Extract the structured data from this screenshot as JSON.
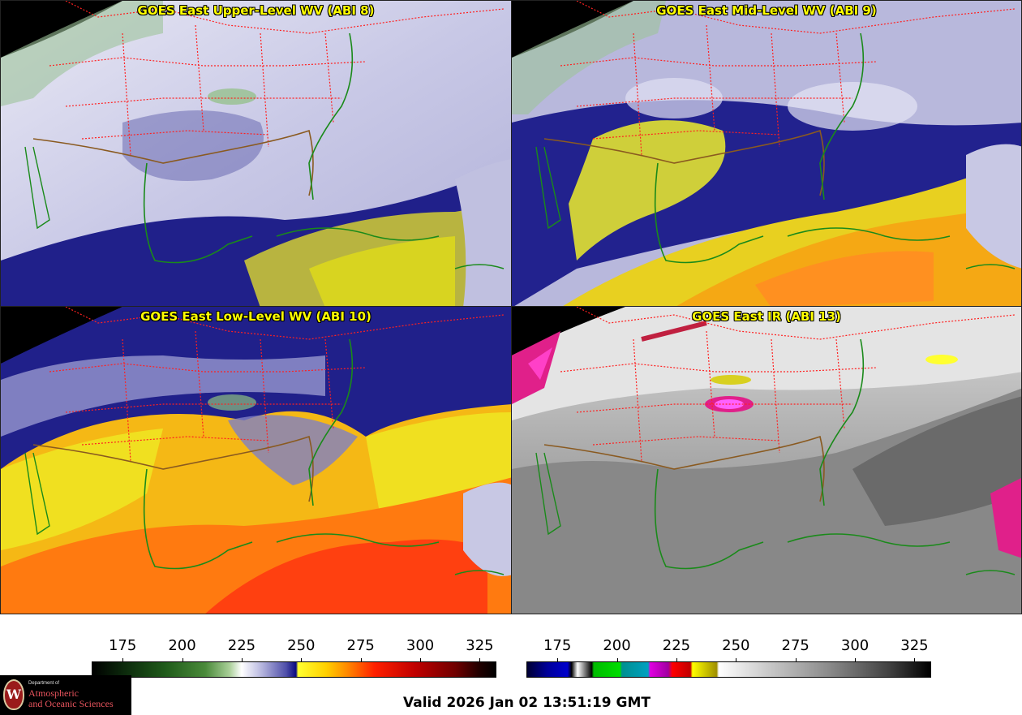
{
  "panels": [
    {
      "title": "GOES East Upper-Level WV (ABI 8)"
    },
    {
      "title": "GOES East Mid-Level WV (ABI 9)"
    },
    {
      "title": "GOES East Low-Level WV (ABI 10)"
    },
    {
      "title": "GOES East IR (ABI 13)"
    }
  ],
  "colorbars": [
    {
      "name": "water-vapor-colorbar",
      "ticks": [
        "175",
        "200",
        "225",
        "250",
        "275",
        "300",
        "325"
      ],
      "range": [
        162,
        332
      ]
    },
    {
      "name": "infrared-colorbar",
      "ticks": [
        "175",
        "200",
        "225",
        "250",
        "275",
        "300",
        "325"
      ],
      "range": [
        162,
        332
      ]
    }
  ],
  "logo": {
    "small": "Department of",
    "line1": "Atmospheric",
    "line2": "and Oceanic Sciences",
    "seal_letter": "W"
  },
  "valid_time": "Valid 2026 Jan 02 13:51:19 GMT",
  "colors": {
    "state_borders": "#ff2020",
    "coastline": "#1a8a1a",
    "country_border": "#8a5a20",
    "title_text": "#ffff00"
  }
}
